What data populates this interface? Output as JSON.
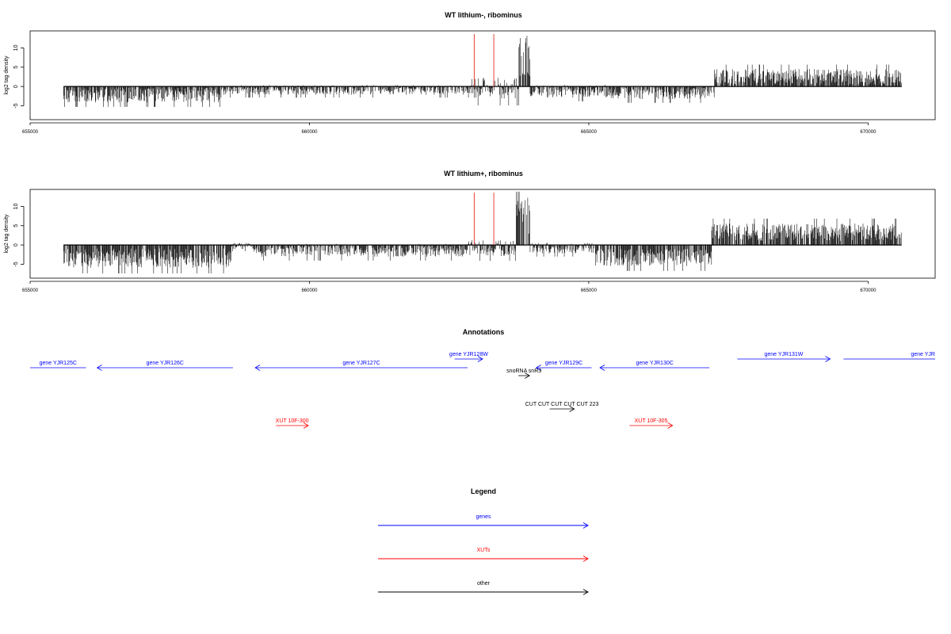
{
  "chart_data": [
    {
      "type": "bar",
      "title": "WT lithium-, ribominus",
      "ylabel": "log2 tag density",
      "xlabel": "",
      "xlim": [
        655000,
        671200
      ],
      "ylim": [
        -8.6,
        14.4
      ],
      "yticks": [
        -5,
        0,
        5,
        10
      ],
      "xticks": [
        655000,
        660000,
        665000,
        670000
      ],
      "xtick_labels": [
        "655000",
        "660000",
        "665000",
        "670000"
      ],
      "data_range": [
        655600,
        670600
      ],
      "markers": [
        662950,
        663300
      ],
      "marker_color": "#e8413a",
      "series": [
        {
          "segments": [
            {
              "start": 655600,
              "end": 658400,
              "mean": -2.2,
              "spread": 1.4
            },
            {
              "start": 658400,
              "end": 662900,
              "mean": -0.9,
              "spread": 0.9
            },
            {
              "start": 662900,
              "end": 663750,
              "mean": -0.5,
              "spread": 2.0
            },
            {
              "start": 663750,
              "end": 663950,
              "mean": 8.0,
              "spread": 4.0
            },
            {
              "start": 663950,
              "end": 665400,
              "mean": -1.2,
              "spread": 1.2
            },
            {
              "start": 665400,
              "end": 667250,
              "mean": -1.6,
              "spread": 1.2
            },
            {
              "start": 667250,
              "end": 670600,
              "mean": 2.6,
              "spread": 1.4
            }
          ]
        }
      ]
    },
    {
      "type": "bar",
      "title": "WT lithium+, ribominus",
      "ylabel": "log2 tag density",
      "xlabel": "",
      "xlim": [
        655000,
        671200
      ],
      "ylim": [
        -8.6,
        14.4
      ],
      "yticks": [
        -5,
        0,
        5,
        10
      ],
      "xticks": [
        655000,
        660000,
        665000,
        670000
      ],
      "xtick_labels": [
        "655000",
        "660000",
        "665000",
        "670000"
      ],
      "data_range": [
        655600,
        670600
      ],
      "markers": [
        662950,
        663300
      ],
      "marker_color": "#e8413a",
      "series": [
        {
          "segments": [
            {
              "start": 655600,
              "end": 658600,
              "mean": -3.4,
              "spread": 1.8
            },
            {
              "start": 658600,
              "end": 659000,
              "mean": -0.3,
              "spread": 0.6
            },
            {
              "start": 659000,
              "end": 662800,
              "mean": -1.4,
              "spread": 1.2
            },
            {
              "start": 662800,
              "end": 663700,
              "mean": -0.8,
              "spread": 1.5
            },
            {
              "start": 663700,
              "end": 663950,
              "mean": 8.5,
              "spread": 4.5
            },
            {
              "start": 663950,
              "end": 665100,
              "mean": -0.8,
              "spread": 1.0
            },
            {
              "start": 665100,
              "end": 667200,
              "mean": -3.2,
              "spread": 1.6
            },
            {
              "start": 667200,
              "end": 670600,
              "mean": 3.3,
              "spread": 1.6
            }
          ]
        }
      ]
    }
  ],
  "annotations": {
    "title": "Annotations",
    "items": [
      {
        "label": "gene YJR125C",
        "start": 655000,
        "end": 656000,
        "row": 1,
        "dir": "left",
        "color": "#0000ff",
        "arrowhead": false
      },
      {
        "label": "gene YJR126C",
        "start": 656200,
        "end": 658630,
        "row": 1,
        "dir": "left",
        "color": "#0000ff",
        "arrowhead": true
      },
      {
        "label": "gene YJR127C",
        "start": 659030,
        "end": 662830,
        "row": 1,
        "dir": "left",
        "color": "#0000ff",
        "arrowhead": true
      },
      {
        "label": "gene YJR128W",
        "start": 662600,
        "end": 663100,
        "row": 0,
        "dir": "right",
        "color": "#0000ff",
        "arrowhead": true
      },
      {
        "label": "gene YJR129C",
        "start": 664060,
        "end": 665050,
        "row": 1,
        "dir": "left",
        "color": "#0000ff",
        "arrowhead": true
      },
      {
        "label": "gene YJR130C",
        "start": 665200,
        "end": 667160,
        "row": 1,
        "dir": "left",
        "color": "#0000ff",
        "arrowhead": true
      },
      {
        "label": "gene YJR131W",
        "start": 667660,
        "end": 669320,
        "row": 0,
        "dir": "right",
        "color": "#0000ff",
        "arrowhead": true
      },
      {
        "label": "gene YJR",
        "start": 669560,
        "end": 671200,
        "row": 0,
        "dir": "right",
        "color": "#0000ff",
        "arrowhead": false,
        "label_anchor": "end"
      },
      {
        "label": "snoRNA snR3",
        "start": 663740,
        "end": 663940,
        "row": 2,
        "dir": "right",
        "color": "#000000",
        "arrowhead": true
      },
      {
        "label": "CUT CUT CUT CUT CUT 223",
        "start": 664300,
        "end": 664740,
        "row": 3,
        "dir": "right",
        "color": "#000000",
        "arrowhead": true
      },
      {
        "label": "XUT 10F-300",
        "start": 659400,
        "end": 659980,
        "row": 4,
        "dir": "right",
        "color": "#ff0000",
        "arrowhead": true
      },
      {
        "label": "XUT 10F-305",
        "start": 665730,
        "end": 666500,
        "row": 4,
        "dir": "right",
        "color": "#ff0000",
        "arrowhead": true
      }
    ]
  },
  "legend": {
    "title": "Legend",
    "items": [
      {
        "label": "genes",
        "color": "#0000ff"
      },
      {
        "label": "XUTs",
        "color": "#ff0000"
      },
      {
        "label": "other",
        "color": "#000000"
      }
    ]
  }
}
